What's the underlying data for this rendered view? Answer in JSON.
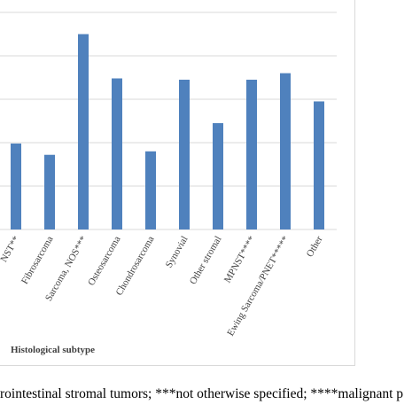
{
  "chart_data": {
    "type": "bar",
    "categories": [
      "NST**",
      "Fibrosarcoma",
      "Sarcoma, NOS***",
      "Osteosarcoma",
      "Chondrosarcoma",
      "Synovial",
      "Other stromal",
      "MPNST****",
      "Ewing Sarcoma/PNET*****",
      "Other"
    ],
    "values": [
      1.98,
      1.72,
      4.5,
      3.48,
      1.8,
      3.45,
      2.45,
      3.45,
      3.6,
      2.95
    ],
    "xlabel": "Histological subtype",
    "ylabel": "",
    "ylim": [
      0,
      5
    ],
    "grid": true,
    "colors": {
      "bar": "#4f81bd",
      "grid": "#d9d9d9"
    }
  },
  "footnote": "rointestinal stromal tumors; ***not otherwise specified; ****malignant p"
}
